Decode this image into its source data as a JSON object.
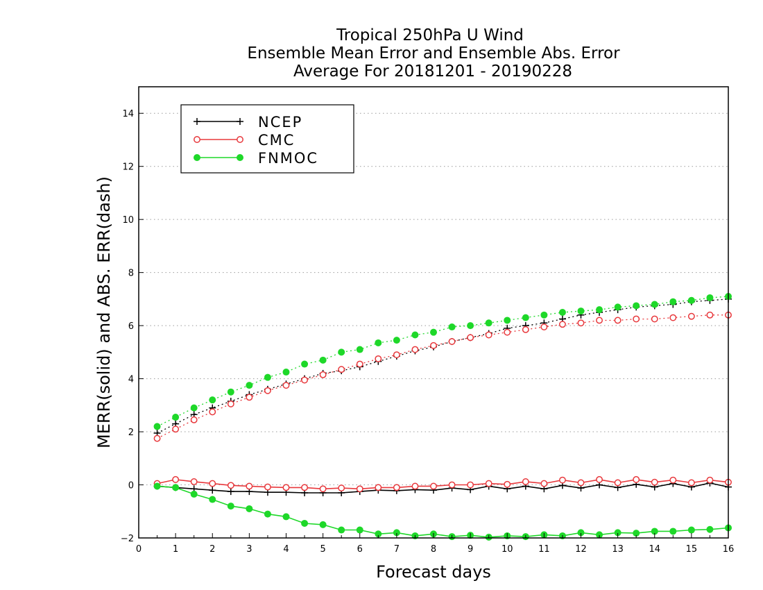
{
  "chart_data": {
    "type": "line",
    "title": [
      "Tropical 250hPa U Wind",
      "Ensemble Mean Error and Ensemble Abs. Error",
      "Average For 20181201 - 20190228"
    ],
    "xlabel": "Forecast days",
    "ylabel": "MERR(solid) and ABS. ERR(dash)",
    "xlim": [
      0,
      16
    ],
    "ylim": [
      -2,
      15
    ],
    "xticks": [
      "0",
      "1",
      "2",
      "3",
      "4",
      "5",
      "6",
      "7",
      "8",
      "9",
      "10",
      "11",
      "12",
      "13",
      "14",
      "15",
      "16"
    ],
    "yticks": [
      "-2",
      "0",
      "2",
      "4",
      "6",
      "8",
      "10",
      "12",
      "14"
    ],
    "grid": "horizontal dotted",
    "legend_position": "top-left",
    "x": [
      0.5,
      1,
      1.5,
      2,
      2.5,
      3,
      3.5,
      4,
      4.5,
      5,
      5.5,
      6,
      6.5,
      7,
      7.5,
      8,
      8.5,
      9,
      9.5,
      10,
      10.5,
      11,
      11.5,
      12,
      12.5,
      13,
      13.5,
      14,
      14.5,
      15,
      15.5,
      16
    ],
    "series": [
      {
        "name": "NCEP",
        "color": "#000000",
        "marker": "plus",
        "merr": [
          -0.05,
          -0.1,
          -0.15,
          -0.2,
          -0.25,
          -0.25,
          -0.28,
          -0.28,
          -0.3,
          -0.3,
          -0.3,
          -0.25,
          -0.2,
          -0.22,
          -0.18,
          -0.2,
          -0.12,
          -0.18,
          -0.05,
          -0.15,
          -0.05,
          -0.15,
          -0.02,
          -0.12,
          0,
          -0.1,
          0.02,
          -0.08,
          0.05,
          -0.08,
          0.07,
          -0.08
        ],
        "abs_err": [
          1.95,
          2.3,
          2.65,
          2.9,
          3.15,
          3.4,
          3.6,
          3.8,
          4.0,
          4.2,
          4.3,
          4.45,
          4.65,
          4.85,
          5.05,
          5.2,
          5.4,
          5.55,
          5.7,
          5.9,
          6.0,
          6.1,
          6.25,
          6.4,
          6.5,
          6.6,
          6.7,
          6.75,
          6.8,
          6.9,
          6.95,
          7.0
        ]
      },
      {
        "name": "CMC",
        "color": "#e8383c",
        "marker": "open-circle",
        "merr": [
          0.05,
          0.2,
          0.12,
          0.05,
          -0.02,
          -0.05,
          -0.08,
          -0.1,
          -0.1,
          -0.15,
          -0.12,
          -0.15,
          -0.1,
          -0.1,
          -0.05,
          -0.05,
          0,
          0,
          0.05,
          0.02,
          0.12,
          0.05,
          0.18,
          0.08,
          0.2,
          0.08,
          0.2,
          0.1,
          0.18,
          0.08,
          0.18,
          0.1
        ],
        "abs_err": [
          1.75,
          2.1,
          2.45,
          2.75,
          3.05,
          3.3,
          3.55,
          3.75,
          3.95,
          4.15,
          4.35,
          4.55,
          4.75,
          4.9,
          5.1,
          5.25,
          5.4,
          5.55,
          5.65,
          5.75,
          5.85,
          5.95,
          6.05,
          6.1,
          6.2,
          6.2,
          6.25,
          6.25,
          6.3,
          6.35,
          6.4,
          6.4
        ]
      },
      {
        "name": "FNMOC",
        "color": "#1ed829",
        "marker": "filled-circle",
        "merr": [
          -0.05,
          -0.1,
          -0.35,
          -0.55,
          -0.8,
          -0.9,
          -1.1,
          -1.2,
          -1.45,
          -1.5,
          -1.7,
          -1.7,
          -1.85,
          -1.8,
          -1.92,
          -1.85,
          -1.95,
          -1.9,
          -1.97,
          -1.92,
          -1.95,
          -1.88,
          -1.92,
          -1.8,
          -1.88,
          -1.8,
          -1.82,
          -1.75,
          -1.75,
          -1.7,
          -1.68,
          -1.62
        ],
        "abs_err": [
          2.2,
          2.55,
          2.9,
          3.2,
          3.5,
          3.75,
          4.05,
          4.25,
          4.55,
          4.7,
          5.0,
          5.1,
          5.35,
          5.45,
          5.65,
          5.75,
          5.95,
          6.0,
          6.1,
          6.2,
          6.3,
          6.4,
          6.5,
          6.55,
          6.6,
          6.7,
          6.75,
          6.8,
          6.9,
          6.95,
          7.05,
          7.1
        ]
      }
    ]
  }
}
